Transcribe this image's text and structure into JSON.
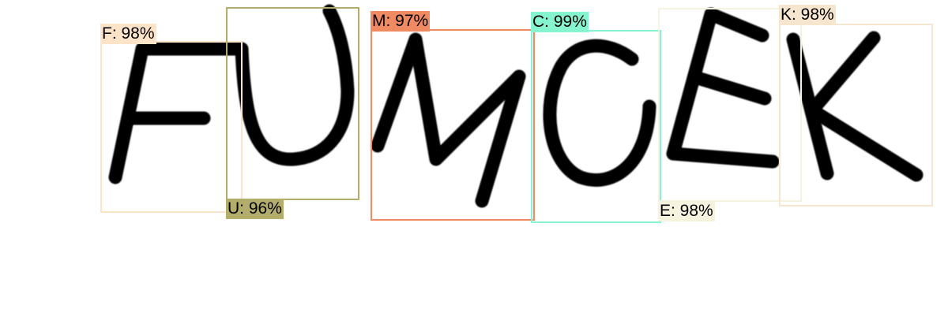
{
  "detections": [
    {
      "char": "F",
      "label": "F: 98%",
      "confidence": 98,
      "color": "#fde3c8"
    },
    {
      "char": "U",
      "label": "U: 96%",
      "confidence": 96,
      "color": "#b3ad6c"
    },
    {
      "char": "M",
      "label": "M: 97%",
      "confidence": 97,
      "color": "#f08a63"
    },
    {
      "char": "C",
      "label": "C: 99%",
      "confidence": 99,
      "color": "#86f5cf"
    },
    {
      "char": "E",
      "label": "E: 98%",
      "confidence": 98,
      "color": "#f5f2dd"
    },
    {
      "char": "K",
      "label": "K: 98%",
      "confidence": 98,
      "color": "#f6e6cf"
    }
  ],
  "glyph_icons": [
    "letter-f-glyph",
    "letter-u-glyph",
    "letter-m-glyph",
    "letter-c-glyph",
    "letter-e-glyph",
    "letter-k-glyph"
  ]
}
